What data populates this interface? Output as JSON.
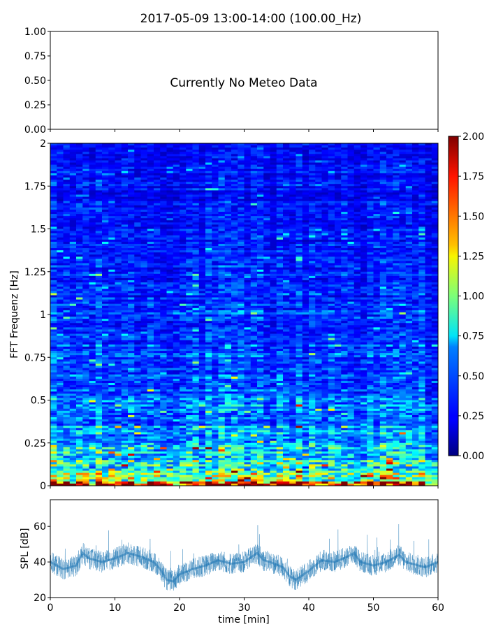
{
  "figure": {
    "title": "2017-05-09 13:00-14:00 (100.00_Hz)"
  },
  "chart_data": [
    {
      "type": "line",
      "panel": "meteo",
      "annotation": "Currently No Meteo Data",
      "ylim": [
        0,
        1
      ],
      "yticks": [
        "0.00",
        "0.25",
        "0.50",
        "0.75",
        "1.00"
      ],
      "xlim": [
        0,
        60
      ],
      "series": []
    },
    {
      "type": "heatmap",
      "panel": "spectrogram",
      "ylabel": "FFT Frequenz [Hz]",
      "ylim": [
        0,
        2
      ],
      "yticks": [
        "0",
        "0.25",
        "0.5",
        "0.75",
        "1",
        "1.25",
        "1.5",
        "1.75",
        "2"
      ],
      "xlim": [
        0,
        60
      ],
      "colormap": "jet",
      "colorbar": {
        "range": [
          0,
          2
        ],
        "ticks": [
          "0.00",
          "0.25",
          "0.50",
          "0.75",
          "1.00",
          "1.25",
          "1.50",
          "1.75",
          "2.00"
        ]
      },
      "value_profile": [
        {
          "freq": 0.0,
          "level": 1.6
        },
        {
          "freq": 0.05,
          "level": 1.05
        },
        {
          "freq": 0.1,
          "level": 0.8
        },
        {
          "freq": 0.2,
          "level": 0.6
        },
        {
          "freq": 0.4,
          "level": 0.48
        },
        {
          "freq": 0.7,
          "level": 0.4
        },
        {
          "freq": 1.0,
          "level": 0.33
        },
        {
          "freq": 1.5,
          "level": 0.27
        },
        {
          "freq": 2.0,
          "level": 0.24
        }
      ]
    },
    {
      "type": "line",
      "panel": "spl",
      "xlabel": "time [min]",
      "ylabel": "SPL [dB]",
      "xlim": [
        0,
        60
      ],
      "ylim": [
        20,
        75
      ],
      "xticks": [
        "0",
        "10",
        "20",
        "30",
        "40",
        "50",
        "60"
      ],
      "yticks": [
        "20",
        "40",
        "60"
      ],
      "color": "#1f77b4",
      "series": [
        {
          "x": [
            0,
            2,
            4,
            5,
            6,
            8,
            10,
            12,
            14,
            16,
            17,
            18,
            19,
            20,
            22,
            24,
            26,
            28,
            30,
            32,
            33,
            34,
            36,
            37,
            38,
            40,
            42,
            44,
            46,
            47,
            48,
            50,
            52,
            54,
            55,
            56,
            58,
            60
          ],
          "y": [
            40,
            36,
            38,
            45,
            42,
            40,
            42,
            45,
            43,
            40,
            36,
            30,
            29,
            33,
            36,
            38,
            41,
            39,
            40,
            45,
            41,
            40,
            37,
            32,
            30,
            35,
            41,
            40,
            43,
            45,
            40,
            38,
            40,
            44,
            40,
            39,
            37,
            40
          ]
        }
      ]
    }
  ]
}
